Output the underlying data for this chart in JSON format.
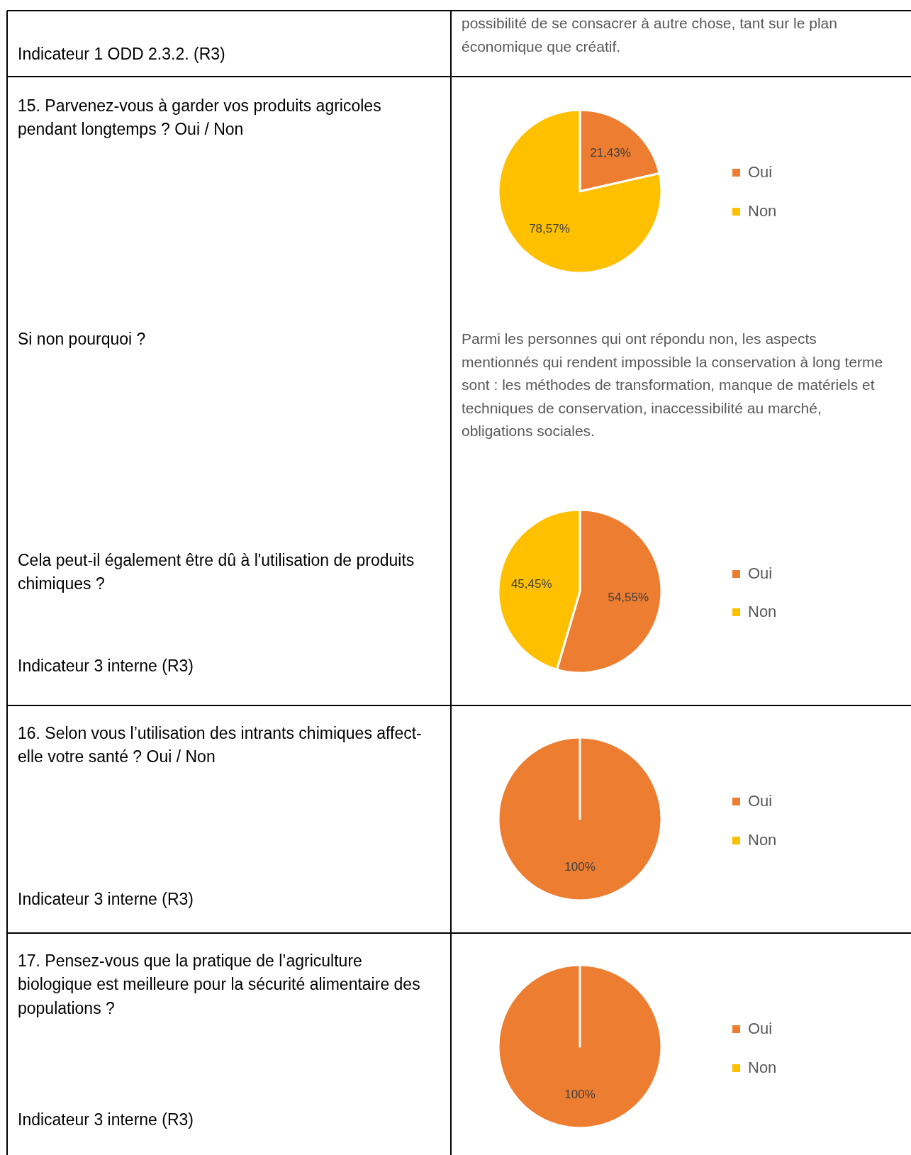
{
  "chart_data": [
    {
      "type": "pie",
      "title": "15. Parvenez-vous à garder vos produits agricoles pendant longtemps ? Oui / Non",
      "categories": [
        "Oui",
        "Non"
      ],
      "values": [
        21.43,
        78.57
      ],
      "colors": [
        "#ed7d31",
        "#ffc000"
      ],
      "value_labels": [
        "21,43%",
        "78,57%"
      ],
      "legend": "right",
      "annotations": [
        "Indicateur 1 ODD 2.3.2. (R3)",
        "possibilité de se consacrer à autre chose, tant sur le plan économique que créatif.",
        "Si non pourquoi ?",
        "Parmi les personnes qui ont répondu non, les aspects mentionnés qui rendent impossible la conservation à long terme sont : les méthodes de transformation, manque de matériels et techniques de conservation, inaccessibilité au marché, obligations sociales."
      ]
    },
    {
      "type": "pie",
      "title": "Cela peut-il également être dû à l'utilisation de produits chimiques ?",
      "categories": [
        "Oui",
        "Non"
      ],
      "values": [
        54.55,
        45.45
      ],
      "colors": [
        "#ed7d31",
        "#ffc000"
      ],
      "value_labels": [
        "54,55%",
        "45,45%"
      ],
      "legend": "right",
      "annotations": [
        "Indicateur 3 interne (R3)"
      ]
    },
    {
      "type": "pie",
      "title": "16. Selon vous l’utilisation des intrants chimiques affect-elle votre santé ? Oui / Non",
      "categories": [
        "Oui",
        "Non"
      ],
      "values": [
        100,
        0
      ],
      "colors": [
        "#ed7d31",
        "#ffc000"
      ],
      "value_labels": [
        "100%",
        null
      ],
      "legend": "right",
      "annotations": [
        "Indicateur 3 interne (R3)"
      ]
    },
    {
      "type": "pie",
      "title": "17. Pensez-vous que la pratique de l’agriculture biologique est meilleure pour la sécurité alimentaire des populations ?",
      "categories": [
        "Oui",
        "Non"
      ],
      "values": [
        100,
        0
      ],
      "colors": [
        "#ed7d31",
        "#ffc000"
      ],
      "value_labels": [
        "100%",
        null
      ],
      "legend": "right",
      "annotations": [
        "Indicateur 3 interne (R3)"
      ]
    }
  ]
}
